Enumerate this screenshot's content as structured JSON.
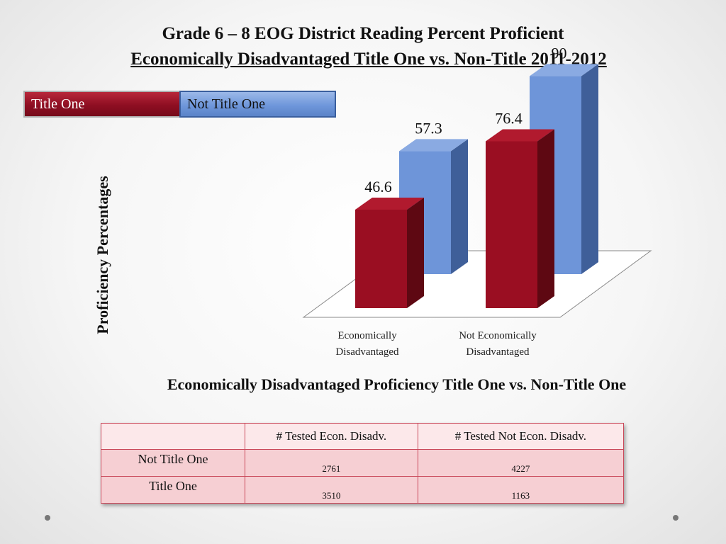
{
  "title": {
    "line1": "Grade 6 – 8 EOG District Reading Percent Proficient",
    "line2": "Economically Disadvantaged Title One vs. Non-Title 2011-2012"
  },
  "legend": [
    {
      "label": "Title One",
      "color": "#8e0e22"
    },
    {
      "label": "Not Title One",
      "color": "#6f97db"
    }
  ],
  "colors": {
    "title_one_front": "#9a0e22",
    "title_one_side": "#5e0812",
    "title_one_top": "#b11a2e",
    "not_title_one_front": "#6e95d9",
    "not_title_one_side": "#3f5f99",
    "not_title_one_top": "#8aaae2",
    "table_border": "#c9485a"
  },
  "chart_data": {
    "type": "bar",
    "ylabel": "Proficiency Percentages",
    "categories": [
      "Economically Disadvantaged",
      "Not Economically Disadvantaged"
    ],
    "series": [
      {
        "name": "Title One",
        "values": [
          46.6,
          76.4
        ]
      },
      {
        "name": "Not Title One",
        "values": [
          57.3,
          90
        ]
      }
    ],
    "value_labels": [
      "46.6",
      "57.3",
      "76.4",
      "90"
    ],
    "category_labels": [
      [
        "Economically",
        "Disadvantaged"
      ],
      [
        "Not Economically",
        "Disadvantaged"
      ]
    ],
    "legend_position": "top-left",
    "grid": false
  },
  "caption": "Economically Disadvantaged Proficiency Title One vs. Non-Title One",
  "table": {
    "headers": [
      "",
      "#  Tested Econ. Disadv.",
      "#  Tested Not Econ. Disadv."
    ],
    "rows": [
      {
        "label": "Not Title One",
        "values": [
          "2761",
          "4227"
        ]
      },
      {
        "label": "Title One",
        "values": [
          "3510",
          "1163"
        ]
      }
    ]
  }
}
